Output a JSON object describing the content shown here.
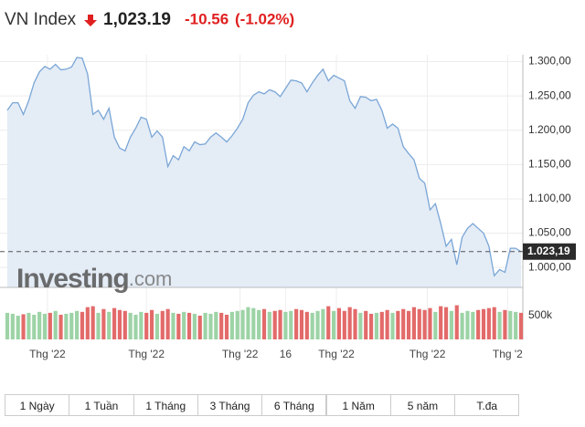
{
  "chart_data": {
    "type": "line",
    "title": "VN Index",
    "last": "1,023.19",
    "change": "-10.56",
    "change_pct": "(-1.02%)",
    "watermark": {
      "brand": "Investing",
      "suffix": ".com"
    },
    "x": [
      0,
      1,
      2,
      3,
      4,
      5,
      6,
      7,
      8,
      9,
      10,
      11,
      12,
      13,
      14,
      15,
      16,
      17,
      18,
      19,
      20,
      21,
      22,
      23,
      24,
      25,
      26,
      27,
      28,
      29,
      30,
      31,
      32,
      33,
      34,
      35,
      36,
      37,
      38,
      39,
      40,
      41,
      42,
      43,
      44,
      45,
      46,
      47,
      48,
      49,
      50,
      51,
      52,
      53,
      54,
      55,
      56,
      57,
      58,
      59,
      60,
      61,
      62,
      63,
      64,
      65,
      66,
      67,
      68,
      69,
      70,
      71,
      72,
      73,
      74,
      75,
      76,
      77,
      78,
      79,
      80,
      81,
      82,
      83,
      84,
      85,
      86,
      87,
      88,
      89,
      90,
      91,
      92,
      93,
      94,
      95,
      96
    ],
    "values": [
      1229,
      1240,
      1240,
      1223,
      1243,
      1269,
      1285,
      1293,
      1289,
      1296,
      1288,
      1289,
      1292,
      1306,
      1305,
      1282,
      1223,
      1229,
      1216,
      1232,
      1190,
      1174,
      1170,
      1190,
      1203,
      1219,
      1216,
      1190,
      1199,
      1190,
      1147,
      1163,
      1157,
      1176,
      1170,
      1183,
      1179,
      1180,
      1190,
      1196,
      1190,
      1183,
      1192,
      1203,
      1216,
      1240,
      1251,
      1256,
      1253,
      1259,
      1256,
      1249,
      1261,
      1273,
      1272,
      1269,
      1256,
      1269,
      1280,
      1289,
      1272,
      1280,
      1276,
      1272,
      1243,
      1232,
      1249,
      1248,
      1243,
      1245,
      1229,
      1203,
      1209,
      1203,
      1176,
      1166,
      1157,
      1130,
      1123,
      1084,
      1093,
      1064,
      1031,
      1041,
      1004,
      1044,
      1057,
      1064,
      1057,
      1050,
      1031,
      988,
      997,
      993,
      1028,
      1028,
      1023.19
    ],
    "color": "#7aa6d6",
    "fill_color": "#e4ecf6",
    "xlim": [
      0,
      96
    ],
    "ylim": [
      971,
      1310
    ],
    "xticks": [
      {
        "value": 7.5,
        "label": "Thg '22"
      },
      {
        "value": 26,
        "label": "Thg '22"
      },
      {
        "value": 43.5,
        "label": "Thg '22"
      },
      {
        "value": 52,
        "label": "16"
      },
      {
        "value": 61.5,
        "label": "Thg '22"
      },
      {
        "value": 78.5,
        "label": "Thg '22"
      },
      {
        "value": 93.5,
        "label": "Thg '2"
      }
    ],
    "yticks": [
      {
        "value": 1000,
        "label": "1.000,00"
      },
      {
        "value": 1050,
        "label": "1.050,00"
      },
      {
        "value": 1100,
        "label": "1.100,00"
      },
      {
        "value": 1150,
        "label": "1.150,00"
      },
      {
        "value": 1200,
        "label": "1.200,00"
      },
      {
        "value": 1250,
        "label": "1.250,00"
      },
      {
        "value": 1300,
        "label": "1.300,00"
      }
    ],
    "grid": true,
    "current": {
      "value": 1023.19,
      "label": "1.023,19"
    },
    "volume": {
      "ylim": [
        0,
        1000000
      ],
      "yticks": [
        {
          "value": 500000,
          "label": "500k"
        }
      ],
      "values": [
        560000,
        540000,
        500000,
        530000,
        560000,
        520000,
        580000,
        540000,
        560000,
        600000,
        520000,
        540000,
        560000,
        600000,
        580000,
        680000,
        700000,
        560000,
        640000,
        580000,
        660000,
        620000,
        600000,
        560000,
        520000,
        580000,
        560000,
        620000,
        540000,
        600000,
        640000,
        560000,
        540000,
        580000,
        560000,
        540000,
        500000,
        560000,
        540000,
        580000,
        560000,
        520000,
        580000,
        600000,
        620000,
        680000,
        660000,
        620000,
        640000,
        580000,
        600000,
        620000,
        580000,
        600000,
        640000,
        620000,
        580000,
        560000,
        600000,
        640000,
        700000,
        600000,
        660000,
        600000,
        680000,
        640000,
        560000,
        600000,
        540000,
        560000,
        580000,
        620000,
        560000,
        600000,
        640000,
        600000,
        680000,
        640000,
        620000,
        660000,
        580000,
        700000,
        680000,
        600000,
        720000,
        560000,
        600000,
        580000,
        620000,
        640000,
        660000,
        680000,
        580000,
        620000,
        600000,
        580000,
        560000
      ],
      "colors": [
        "#9dd3a6",
        "#9dd3a6",
        "#9dd3a6",
        "#e36a6a",
        "#9dd3a6",
        "#9dd3a6",
        "#9dd3a6",
        "#9dd3a6",
        "#e36a6a",
        "#9dd3a6",
        "#e36a6a",
        "#9dd3a6",
        "#9dd3a6",
        "#9dd3a6",
        "#e36a6a",
        "#e36a6a",
        "#e36a6a",
        "#9dd3a6",
        "#e36a6a",
        "#9dd3a6",
        "#e36a6a",
        "#e36a6a",
        "#e36a6a",
        "#9dd3a6",
        "#9dd3a6",
        "#9dd3a6",
        "#e36a6a",
        "#e36a6a",
        "#9dd3a6",
        "#e36a6a",
        "#e36a6a",
        "#9dd3a6",
        "#e36a6a",
        "#9dd3a6",
        "#e36a6a",
        "#9dd3a6",
        "#e36a6a",
        "#9dd3a6",
        "#9dd3a6",
        "#9dd3a6",
        "#e36a6a",
        "#e36a6a",
        "#9dd3a6",
        "#9dd3a6",
        "#9dd3a6",
        "#9dd3a6",
        "#9dd3a6",
        "#9dd3a6",
        "#e36a6a",
        "#9dd3a6",
        "#e36a6a",
        "#e36a6a",
        "#9dd3a6",
        "#9dd3a6",
        "#e36a6a",
        "#e36a6a",
        "#e36a6a",
        "#9dd3a6",
        "#9dd3a6",
        "#9dd3a6",
        "#e36a6a",
        "#9dd3a6",
        "#e36a6a",
        "#e36a6a",
        "#e36a6a",
        "#e36a6a",
        "#9dd3a6",
        "#e36a6a",
        "#e36a6a",
        "#9dd3a6",
        "#e36a6a",
        "#e36a6a",
        "#9dd3a6",
        "#e36a6a",
        "#e36a6a",
        "#e36a6a",
        "#e36a6a",
        "#e36a6a",
        "#e36a6a",
        "#e36a6a",
        "#9dd3a6",
        "#e36a6a",
        "#e36a6a",
        "#9dd3a6",
        "#e36a6a",
        "#9dd3a6",
        "#9dd3a6",
        "#9dd3a6",
        "#e36a6a",
        "#e36a6a",
        "#e36a6a",
        "#e36a6a",
        "#9dd3a6",
        "#e36a6a",
        "#9dd3a6",
        "#9dd3a6",
        "#e36a6a"
      ]
    },
    "range_buttons": [
      "1 Ngày",
      "1 Tuần",
      "1 Tháng",
      "3 Tháng",
      "6 Tháng",
      "1 Năm",
      "5 năm",
      "T.đa"
    ]
  }
}
